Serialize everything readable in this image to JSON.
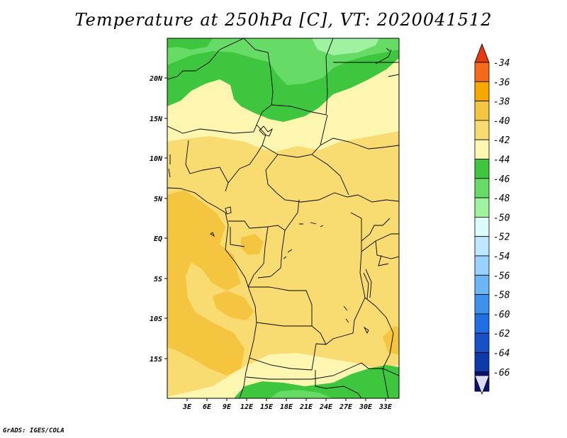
{
  "title": "Temperature at 250hPa [C], VT: 2020041512",
  "credit": "GrADS: IGES/COLA",
  "map": {
    "lon_range": [
      0,
      35
    ],
    "lat_range": [
      -20,
      25
    ],
    "lat_labels": [
      "20N",
      "15N",
      "10N",
      "5N",
      "EQ",
      "5S",
      "10S",
      "15S"
    ],
    "lon_labels": [
      "3E",
      "6E",
      "9E",
      "12E",
      "15E",
      "18E",
      "21E",
      "24E",
      "27E",
      "30E",
      "33E"
    ]
  },
  "legend": {
    "levels": [
      "-34",
      "-36",
      "-38",
      "-40",
      "-42",
      "-44",
      "-46",
      "-48",
      "-50",
      "-52",
      "-54",
      "-56",
      "-58",
      "-60",
      "-62",
      "-64",
      "-66"
    ],
    "colors": [
      "#f5691a",
      "#f7a900",
      "#f5c540",
      "#f8dc72",
      "#fdf6b0",
      "#3ec63e",
      "#66dc66",
      "#9ff29f",
      "#dcfcfc",
      "#bee8ff",
      "#9ad2ff",
      "#6cb6f8",
      "#3c92ec",
      "#1f6ee4",
      "#1850c8",
      "#0c3aa8",
      "#0a1278"
    ],
    "top_color": "#e53a10",
    "bottom_color": "#dcdcf5"
  }
}
